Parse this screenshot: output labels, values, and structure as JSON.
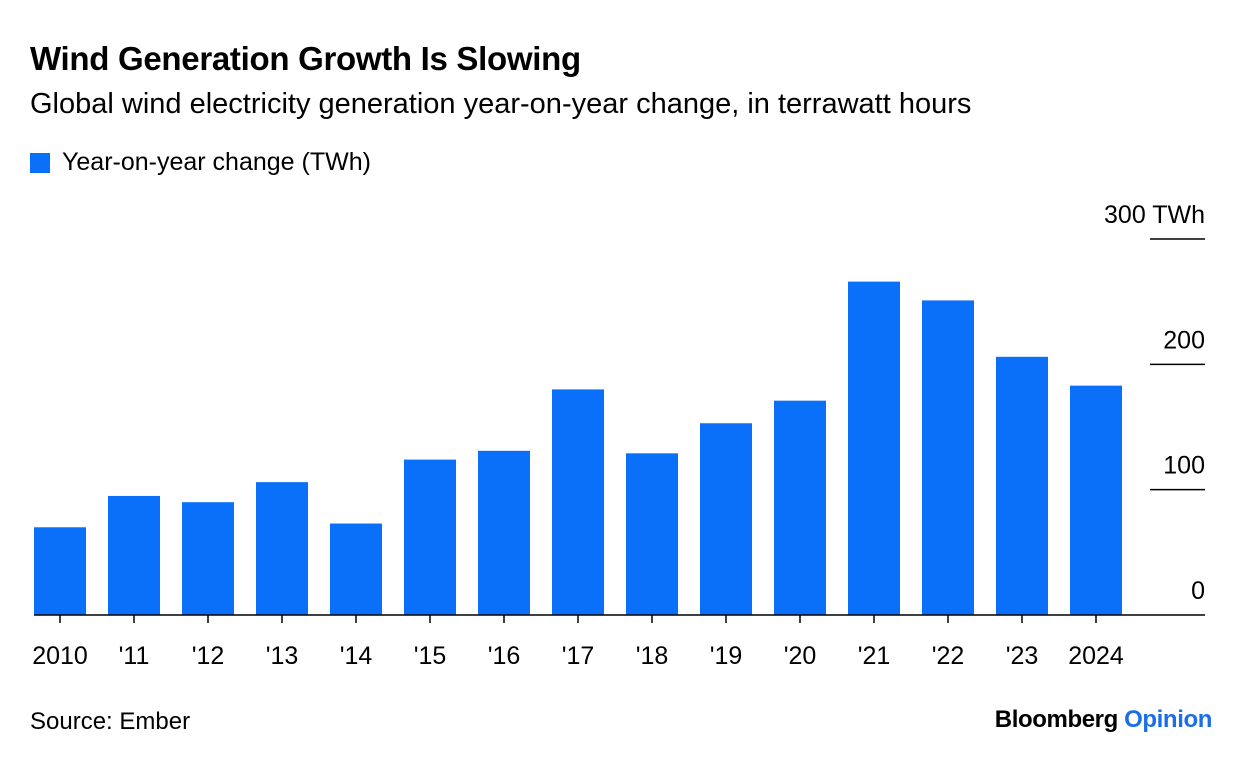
{
  "header": {
    "title": "Wind Generation Growth Is Slowing",
    "subtitle": "Global wind electricity generation year-on-year change, in terrawatt hours"
  },
  "legend": {
    "label": "Year-on-year change (TWh)",
    "color": "#0a6ff9"
  },
  "footer": {
    "source": "Source: Ember",
    "brand_a": "Bloomberg",
    "brand_b": "Opinion"
  },
  "chart_data": {
    "type": "bar",
    "title": "Wind Generation Growth Is Slowing",
    "subtitle": "Global wind electricity generation year-on-year change, in terrawatt hours",
    "xlabel": "",
    "ylabel": "",
    "categories": [
      "2010",
      "'11",
      "'12",
      "'13",
      "'14",
      "'15",
      "'16",
      "'17",
      "'18",
      "'19",
      "'20",
      "'21",
      "'22",
      "'23",
      "2024"
    ],
    "series": [
      {
        "name": "Year-on-year change (TWh)",
        "values": [
          70,
          95,
          90,
          106,
          73,
          124,
          131,
          180,
          129,
          153,
          171,
          266,
          251,
          206,
          183
        ],
        "color": "#0a6ff9"
      }
    ],
    "ylim": [
      0,
      300
    ],
    "yticks": [
      0,
      100,
      200,
      300
    ],
    "ytick_labels": [
      "0",
      "100",
      "200",
      "300 TWh"
    ],
    "y_axis_side": "right",
    "grid": false,
    "legend_position": "top-left"
  }
}
